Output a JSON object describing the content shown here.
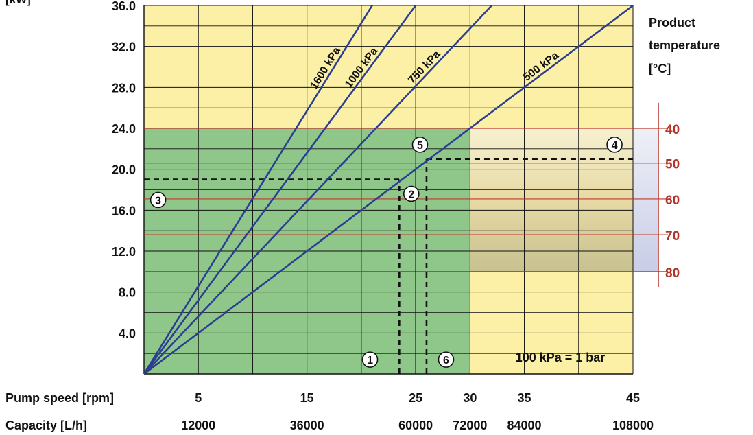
{
  "chart_data": {
    "type": "line",
    "y_unit_label": "[kW]",
    "y_ticks": [
      "4.0",
      "8.0",
      "12.0",
      "16.0",
      "20.0",
      "24.0",
      "28.0",
      "32.0",
      "36.0"
    ],
    "ylim": [
      0,
      36
    ],
    "pump_speed_label": "Pump speed [rpm]",
    "pump_speed_ticks": [
      {
        "value": 5,
        "label": "5"
      },
      {
        "value": 15,
        "label": "15"
      },
      {
        "value": 25,
        "label": "25"
      },
      {
        "value": 30,
        "label": "30"
      },
      {
        "value": 35,
        "label": "35"
      },
      {
        "value": 45,
        "label": "45"
      }
    ],
    "capacity_label": "Capacity [L/h]",
    "capacity_ticks": [
      {
        "value": 5,
        "label": "12000"
      },
      {
        "value": 15,
        "label": "36000"
      },
      {
        "value": 25,
        "label": "60000"
      },
      {
        "value": 30,
        "label": "72000"
      },
      {
        "value": 35,
        "label": "84000"
      },
      {
        "value": 45,
        "label": "108000"
      }
    ],
    "xlim": [
      0,
      45
    ],
    "series": [
      {
        "name": "1600 kPa",
        "x": [
          0,
          21
        ],
        "y": [
          0,
          36
        ]
      },
      {
        "name": "1000 kPa",
        "x": [
          0,
          25
        ],
        "y": [
          0,
          36
        ]
      },
      {
        "name": "750 kPa",
        "x": [
          0,
          32
        ],
        "y": [
          0,
          36
        ]
      },
      {
        "name": "500 kPa",
        "x": [
          0,
          45
        ],
        "y": [
          0,
          36
        ]
      }
    ],
    "zones": {
      "upper_region": {
        "y_from": 24,
        "y_to": 36,
        "color": "#fbf0a6"
      },
      "green_region": {
        "x_from": 0,
        "x_to": 30,
        "y_from": 0,
        "y_to": 24,
        "color": "#8fc78a"
      },
      "right_region": {
        "x_from": 30,
        "x_to": 45,
        "y_from": 0,
        "y_to": 24,
        "color": "#fbf0a6"
      },
      "temperature_band": {
        "x_from": 30,
        "x_to": 45,
        "y_from": 10,
        "y_to": 24
      }
    },
    "temperature_title_lines": [
      "Product",
      "temperature",
      "[°C]"
    ],
    "temperature_lines": [
      {
        "label": "40",
        "y": 24
      },
      {
        "label": "50",
        "y": 20.6
      },
      {
        "label": "60",
        "y": 17.1
      },
      {
        "label": "70",
        "y": 13.6
      },
      {
        "label": "80",
        "y": 10.0
      }
    ],
    "guides": [
      {
        "type": "dashed",
        "x": [
          23.5,
          23.5
        ],
        "y": [
          0,
          19
        ]
      },
      {
        "type": "dashed",
        "x": [
          0,
          23.5
        ],
        "y": [
          19,
          19
        ]
      },
      {
        "type": "dashed",
        "x": [
          26,
          26
        ],
        "y": [
          0,
          21
        ]
      },
      {
        "type": "dashed",
        "x": [
          26,
          45
        ],
        "y": [
          21,
          21
        ]
      },
      {
        "type": "solid",
        "x": [
          25,
          25
        ],
        "y": [
          0,
          20
        ]
      }
    ],
    "markers": [
      {
        "label": "1",
        "x": 20.8,
        "y": 1.4
      },
      {
        "label": "2",
        "x": 24.6,
        "y": 17.6
      },
      {
        "label": "3",
        "x": 1.3,
        "y": 17.0
      },
      {
        "label": "4",
        "x": 43.3,
        "y": 22.4
      },
      {
        "label": "5",
        "x": 25.4,
        "y": 22.4
      },
      {
        "label": "6",
        "x": 27.8,
        "y": 1.4
      }
    ],
    "note": "100 kPa = 1 bar",
    "grid": true
  }
}
